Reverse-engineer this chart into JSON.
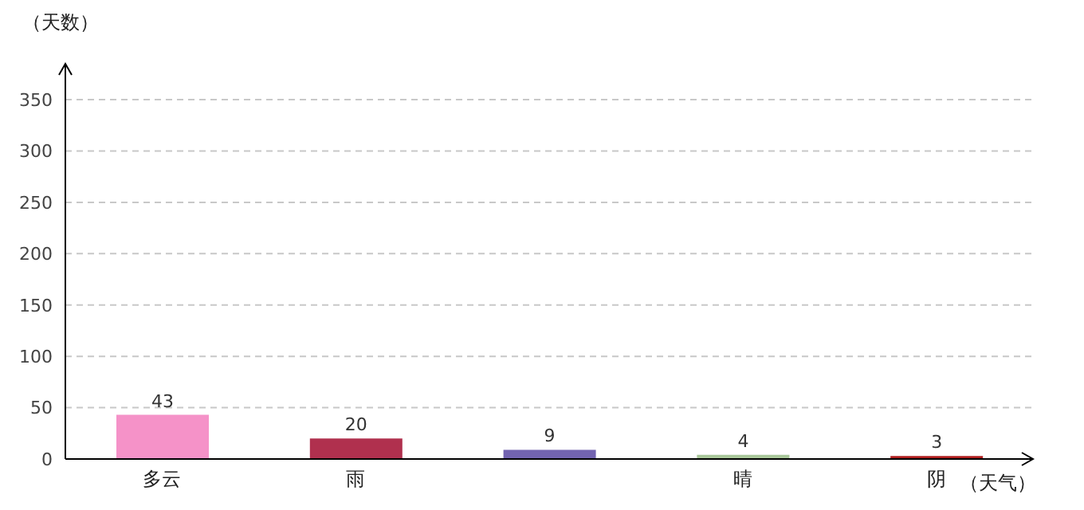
{
  "chart_data": {
    "type": "bar",
    "xlabel": "（天气）",
    "ylabel": "（天数）",
    "categories": [
      "多云",
      "雨",
      null,
      "晴",
      "阴"
    ],
    "values": [
      43,
      20,
      9,
      4,
      3
    ],
    "colors": [
      "#f592c8",
      "#b0304e",
      "#7263b0",
      "#a9c79a",
      "#b01e1e"
    ],
    "ylim": [
      0,
      385
    ],
    "yticks": [
      0,
      50,
      100,
      150,
      200,
      250,
      300,
      350
    ],
    "grid": "y",
    "data_labels": true
  }
}
